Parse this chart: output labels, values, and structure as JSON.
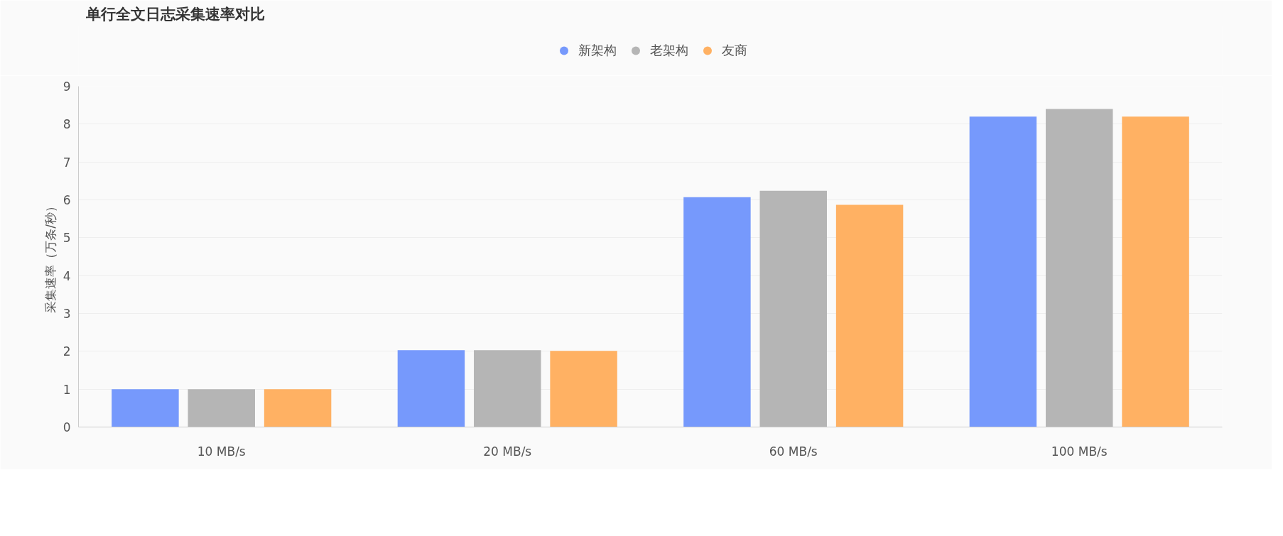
{
  "chart_data": {
    "type": "bar",
    "title": "单行全文日志采集速率对比",
    "ylabel": "采集速率（万条/秒）",
    "categories": [
      "10 MB/s",
      "20 MB/s",
      "60 MB/s",
      "100 MB/s"
    ],
    "series": [
      {
        "name": "新架构",
        "color": "#7699fc",
        "values": [
          1.0,
          2.03,
          6.07,
          8.2
        ]
      },
      {
        "name": "老架构",
        "color": "#b5b5b5",
        "values": [
          1.0,
          2.03,
          6.24,
          8.4
        ]
      },
      {
        "name": "友商",
        "color": "#ffb163",
        "values": [
          1.0,
          2.01,
          5.87,
          8.2
        ]
      }
    ],
    "ylim": [
      0,
      9
    ],
    "yticks": [
      0,
      1,
      2,
      3,
      4,
      5,
      6,
      7,
      8,
      9
    ],
    "grid": "y",
    "legend": "top"
  }
}
